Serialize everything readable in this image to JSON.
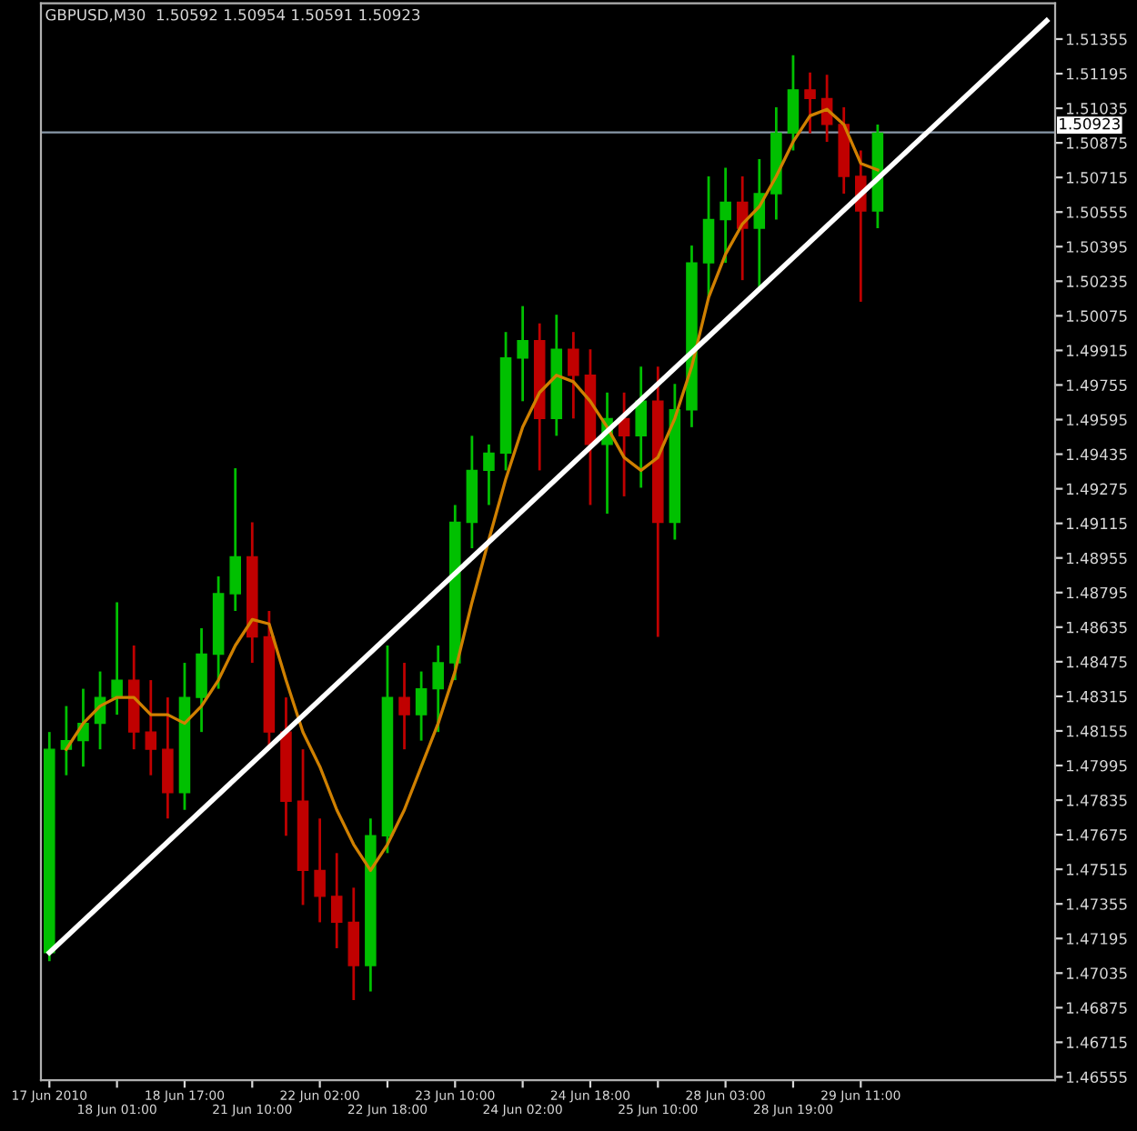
{
  "chart_data": {
    "type": "candlestick",
    "title": "GBPUSD,M30  1.50592 1.50954 1.50591 1.50923",
    "categories": [
      "17 Jun 2010",
      null,
      null,
      null,
      "18 Jun 01:00",
      null,
      null,
      null,
      "18 Jun 17:00",
      null,
      null,
      null,
      "21 Jun 10:00",
      null,
      null,
      null,
      "22 Jun 02:00",
      null,
      null,
      null,
      "22 Jun 18:00",
      null,
      null,
      null,
      "23 Jun 10:00",
      null,
      null,
      null,
      "24 Jun 02:00",
      null,
      null,
      null,
      "24 Jun 18:00",
      null,
      null,
      null,
      "25 Jun 10:00",
      null,
      null,
      null,
      "28 Jun 03:00",
      null,
      null,
      null,
      "28 Jun 19:00",
      null,
      null,
      null,
      "29 Jun 11:00",
      null,
      null,
      null,
      null,
      null,
      null,
      null,
      null,
      null,
      null,
      null
    ],
    "ohlc": [
      [
        1.4713,
        1.4815,
        1.4709,
        1.4807
      ],
      [
        1.4807,
        1.4827,
        1.4795,
        1.4811
      ],
      [
        1.4811,
        1.4835,
        1.4799,
        1.4819
      ],
      [
        1.4819,
        1.4843,
        1.4807,
        1.4831
      ],
      [
        1.4831,
        1.4875,
        1.4823,
        1.4839
      ],
      [
        1.4839,
        1.4855,
        1.4807,
        1.4815
      ],
      [
        1.4815,
        1.4839,
        1.4795,
        1.4807
      ],
      [
        1.4807,
        1.4831,
        1.4775,
        1.4787
      ],
      [
        1.4787,
        1.4847,
        1.4779,
        1.4831
      ],
      [
        1.4831,
        1.4863,
        1.4815,
        1.4851
      ],
      [
        1.4851,
        1.4887,
        1.4835,
        1.4879
      ],
      [
        1.4879,
        1.4937,
        1.4871,
        1.4896
      ],
      [
        1.4896,
        1.4912,
        1.4847,
        1.4859
      ],
      [
        1.4859,
        1.4871,
        1.4807,
        1.4815
      ],
      [
        1.4815,
        1.4831,
        1.4767,
        1.4783
      ],
      [
        1.4783,
        1.4807,
        1.4735,
        1.4751
      ],
      [
        1.4751,
        1.4775,
        1.4727,
        1.4739
      ],
      [
        1.4739,
        1.4759,
        1.4715,
        1.4727
      ],
      [
        1.4727,
        1.4743,
        1.4691,
        1.4707
      ],
      [
        1.4707,
        1.4775,
        1.4695,
        1.4767
      ],
      [
        1.4767,
        1.4855,
        1.4759,
        1.4831
      ],
      [
        1.4831,
        1.4847,
        1.4807,
        1.4823
      ],
      [
        1.4823,
        1.4843,
        1.4811,
        1.4835
      ],
      [
        1.4835,
        1.4855,
        1.4815,
        1.4847
      ],
      [
        1.4847,
        1.492,
        1.4839,
        1.4912
      ],
      [
        1.4912,
        1.4952,
        1.49,
        1.4936
      ],
      [
        1.4936,
        1.4948,
        1.492,
        1.4944
      ],
      [
        1.4944,
        1.5,
        1.4936,
        1.4988
      ],
      [
        1.4988,
        1.5012,
        1.4968,
        1.4996
      ],
      [
        1.4996,
        1.5004,
        1.4936,
        1.496
      ],
      [
        1.496,
        1.5008,
        1.4952,
        1.4992
      ],
      [
        1.4992,
        1.5,
        1.496,
        1.498
      ],
      [
        1.498,
        1.4992,
        1.492,
        1.4948
      ],
      [
        1.4948,
        1.4972,
        1.4916,
        1.496
      ],
      [
        1.496,
        1.4972,
        1.4924,
        1.4952
      ],
      [
        1.4952,
        1.4984,
        1.4928,
        1.4968
      ],
      [
        1.4968,
        1.4984,
        1.4859,
        1.4912
      ],
      [
        1.4912,
        1.4976,
        1.4904,
        1.4964
      ],
      [
        1.4964,
        1.504,
        1.4956,
        1.5032
      ],
      [
        1.5032,
        1.5072,
        1.5016,
        1.5052
      ],
      [
        1.5052,
        1.5076,
        1.5032,
        1.506
      ],
      [
        1.506,
        1.5072,
        1.5024,
        1.5048
      ],
      [
        1.5048,
        1.508,
        1.502,
        1.5064
      ],
      [
        1.5064,
        1.5104,
        1.5052,
        1.5092
      ],
      [
        1.5092,
        1.5128,
        1.5084,
        1.5112
      ],
      [
        1.5112,
        1.512,
        1.5092,
        1.5108
      ],
      [
        1.5108,
        1.5119,
        1.5088,
        1.5096
      ],
      [
        1.5096,
        1.5104,
        1.5064,
        1.5072
      ],
      [
        1.5072,
        1.5084,
        1.5014,
        1.5056
      ],
      [
        1.5056,
        1.5096,
        1.5048,
        1.5092
      ],
      null,
      null,
      null,
      null,
      null,
      null,
      null,
      null,
      null,
      null
    ],
    "colors": [
      "#00c000",
      "#00c000",
      "#00c000",
      "#00c000",
      "#00c000",
      "#c00000",
      "#c00000",
      "#c00000",
      "#00c000",
      "#00c000",
      "#00c000",
      "#00c000",
      "#c00000",
      "#c00000",
      "#c00000",
      "#c00000",
      "#c00000",
      "#c00000",
      "#c00000",
      "#00c000",
      "#00c000",
      "#c00000",
      "#00c000",
      "#00c000",
      "#00c000",
      "#00c000",
      "#00c000",
      "#00c000",
      "#00c000",
      "#c00000",
      "#00c000",
      "#c00000",
      "#c00000",
      "#00c000",
      "#c00000",
      "#00c000",
      "#c00000",
      "#00c000",
      "#00c000",
      "#00c000",
      "#00c000",
      "#c00000",
      "#00c000",
      "#00c000",
      "#00c000",
      "#c00000",
      "#c00000",
      "#c00000",
      "#c00000",
      "#00c000",
      null,
      null,
      null,
      null,
      null,
      null,
      null,
      null,
      null,
      null
    ],
    "series": [
      {
        "type": "line",
        "color": "#d08000",
        "values": [
          null,
          1.4807,
          1.4819,
          1.4827,
          1.4831,
          1.4831,
          1.4823,
          1.4823,
          1.4819,
          1.4827,
          1.4839,
          1.4855,
          1.4867,
          1.4865,
          1.4839,
          1.4815,
          1.4799,
          1.4779,
          1.4763,
          1.4751,
          1.4763,
          1.4779,
          1.4799,
          1.4819,
          1.4843,
          1.4875,
          1.4904,
          1.4932,
          1.4956,
          1.4972,
          1.498,
          1.4977,
          1.4968,
          1.4956,
          1.4942,
          1.4936,
          1.4942,
          1.496,
          1.4984,
          1.5016,
          1.5036,
          1.505,
          1.5058,
          1.5072,
          1.5088,
          1.51,
          1.5103,
          1.5096,
          1.5078,
          1.5075,
          null,
          null,
          null,
          null,
          null,
          null,
          null,
          null,
          null,
          null
        ]
      },
      {
        "type": "line",
        "color": "#ffffff",
        "values": [
          1.4713,
          null,
          null,
          null,
          null,
          null,
          null,
          null,
          null,
          null,
          null,
          null,
          null,
          null,
          null,
          null,
          null,
          null,
          null,
          null,
          null,
          null,
          null,
          null,
          null,
          null,
          null,
          null,
          null,
          null,
          null,
          null,
          null,
          null,
          null,
          null,
          null,
          null,
          null,
          null,
          null,
          null,
          null,
          null,
          null,
          null,
          null,
          null,
          null,
          null,
          null,
          null,
          null,
          null,
          null,
          null,
          null,
          null,
          null,
          1.5144
        ]
      }
    ],
    "ylim": [
      1.4654,
      1.5152
    ],
    "yticks": [
      1.46555,
      1.46715,
      1.46875,
      1.47035,
      1.47195,
      1.47355,
      1.47515,
      1.47675,
      1.47835,
      1.47995,
      1.48155,
      1.48315,
      1.48475,
      1.48635,
      1.48795,
      1.48955,
      1.49115,
      1.49275,
      1.49435,
      1.49595,
      1.49755,
      1.49915,
      1.50075,
      1.50235,
      1.50395,
      1.50555,
      1.50715,
      1.50875,
      1.51035,
      1.51195,
      1.51355
    ],
    "ref_lines": [
      {
        "axis": "y",
        "value": 1.50923,
        "label": "1.50923",
        "color": "#8898a8"
      }
    ],
    "grid": false,
    "legend": false
  }
}
